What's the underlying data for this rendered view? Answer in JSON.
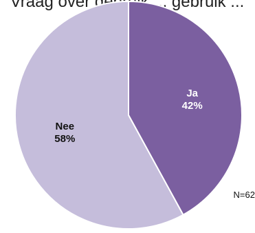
{
  "chart_data": {
    "type": "pie",
    "title": "Vraag over gebruik ... gebruik ...",
    "slices": [
      {
        "label": "Ja",
        "value": 42,
        "display": "42%",
        "color": "#7b5fa0",
        "label_color": "#ffffff"
      },
      {
        "label": "Nee",
        "value": 58,
        "display": "58%",
        "color": "#c5bddb",
        "label_color": "#111111"
      }
    ],
    "note": "N=62"
  }
}
